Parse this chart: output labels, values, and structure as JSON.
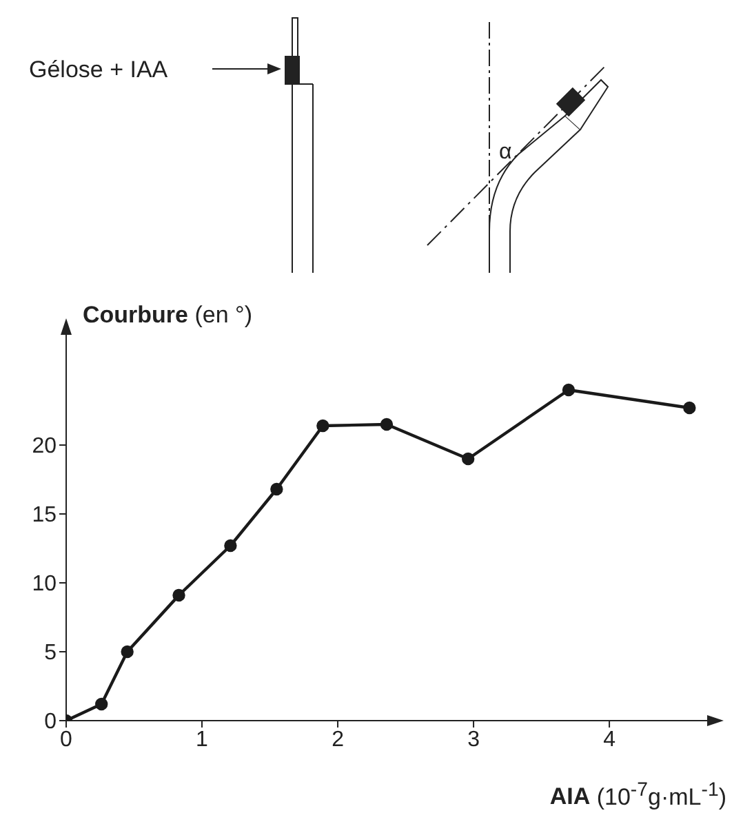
{
  "chart_data": {
    "type": "line",
    "ylabel": "Courbure (en °)",
    "xlabel": "AIA (10$^{-7}$g·mL$^{-1}$)",
    "annotations": [
      "Gélose + IAA",
      "α"
    ],
    "series": [
      {
        "color": "#1a1a1a",
        "x": [
          0,
          0.26,
          0.45,
          0.83,
          1.21,
          1.55,
          1.89,
          2.36,
          2.96,
          3.7,
          4.59
        ],
        "values": [
          0,
          1.2,
          5,
          9.1,
          12.7,
          16.8,
          21.4,
          21.5,
          19,
          24,
          22.7
        ]
      }
    ],
    "xlim": [
      0,
      4.7
    ],
    "xticks": [
      0,
      1,
      2,
      3,
      4
    ],
    "ylim": [
      0,
      27
    ],
    "yticks": [
      0,
      5,
      10,
      15,
      20
    ],
    "grid": false,
    "legend": false,
    "marker": "circle",
    "line_style": "solid"
  }
}
